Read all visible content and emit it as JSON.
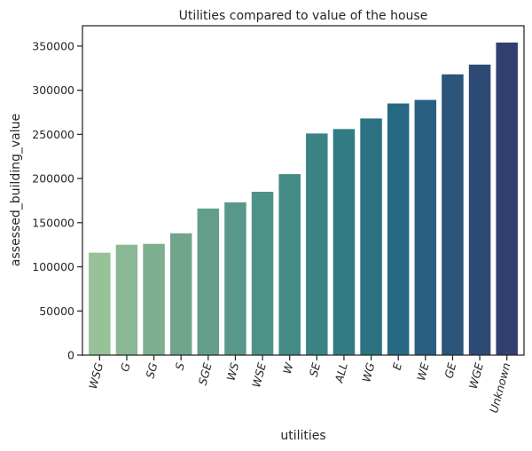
{
  "chart_data": {
    "type": "bar",
    "title": "Utilities compared to value of the house",
    "xlabel": "utilities",
    "ylabel": "assessed_building_value",
    "categories": [
      "WSG",
      "G",
      "SG",
      "S",
      "SGE",
      "WS",
      "WSE",
      "W",
      "SE",
      "ALL",
      "WG",
      "E",
      "WE",
      "GE",
      "WGE",
      "Unknown"
    ],
    "values": [
      116000,
      125000,
      126000,
      138000,
      166000,
      173000,
      185000,
      205000,
      251000,
      256000,
      268000,
      285000,
      289000,
      318000,
      329000,
      354000
    ],
    "ylim": [
      0,
      373000
    ],
    "yticks": [
      0,
      50000,
      100000,
      150000,
      200000,
      250000,
      300000,
      350000
    ],
    "ytick_labels": [
      "0",
      "50000",
      "100000",
      "150000",
      "200000",
      "250000",
      "300000",
      "350000"
    ],
    "xtick_rotation": 75,
    "grid": false,
    "legend": "none",
    "palette": [
      "#97c298",
      "#8ab894",
      "#7dae8f",
      "#70a58c",
      "#629e8a",
      "#589889",
      "#4e9287",
      "#448b86",
      "#3a8385",
      "#317b84",
      "#2b7283",
      "#276982",
      "#285f80",
      "#2b557b",
      "#2e4b75",
      "#31406e"
    ]
  }
}
